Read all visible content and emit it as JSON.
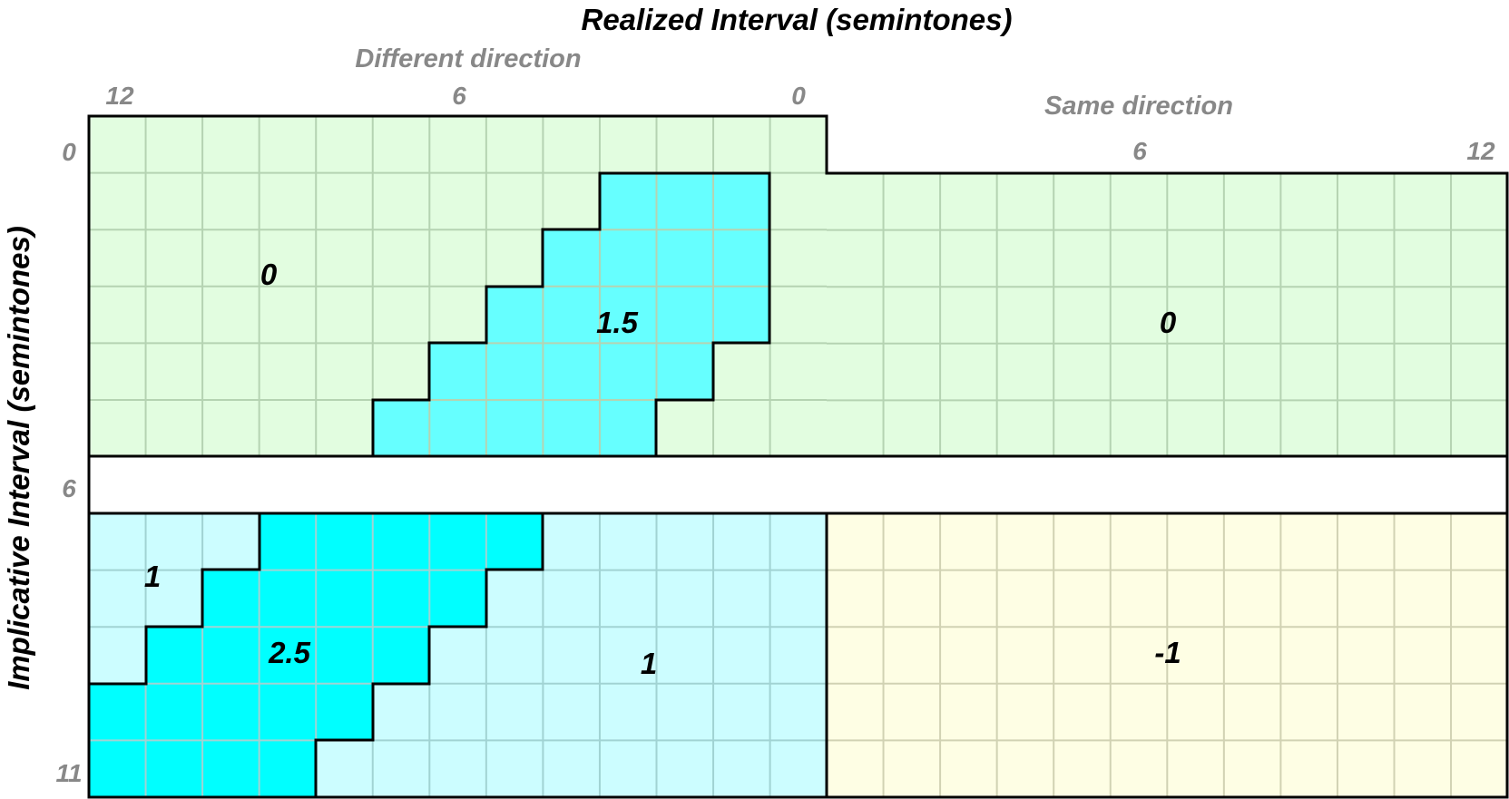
{
  "title": "Realized Interval (semintones)",
  "y_axis_label": "Implicative Interval (semintones)",
  "different_direction": {
    "label": "Different direction",
    "ticks": [
      "12",
      "6",
      "0"
    ]
  },
  "same_direction": {
    "label": "Same direction",
    "ticks": [
      "6",
      "12"
    ]
  },
  "row_ticks": [
    "0",
    "6",
    "11"
  ],
  "regions": [
    {
      "id": "region-top-left-zero",
      "value": "0"
    },
    {
      "id": "region-top-cyan",
      "value": "1.5"
    },
    {
      "id": "region-top-right-zero",
      "value": "0"
    },
    {
      "id": "region-bottom-light-left",
      "value": "1"
    },
    {
      "id": "region-bottom-cyan",
      "value": "2.5"
    },
    {
      "id": "region-bottom-light-right",
      "value": "1"
    },
    {
      "id": "region-bottom-yellow",
      "value": "-1"
    }
  ],
  "colors": {
    "light_green": "#e2fde0",
    "cyan_mid": "#66ffff",
    "cyan_bright": "#00ffff",
    "light_cyan": "#ccfdff",
    "light_yellow": "#fefee4",
    "grid_green": "#b5d3b2",
    "grid_cyan": "#a1d3d3",
    "grid_yellow": "#d1d2b3",
    "axis_gray": "#888888",
    "border": "#000000"
  }
}
